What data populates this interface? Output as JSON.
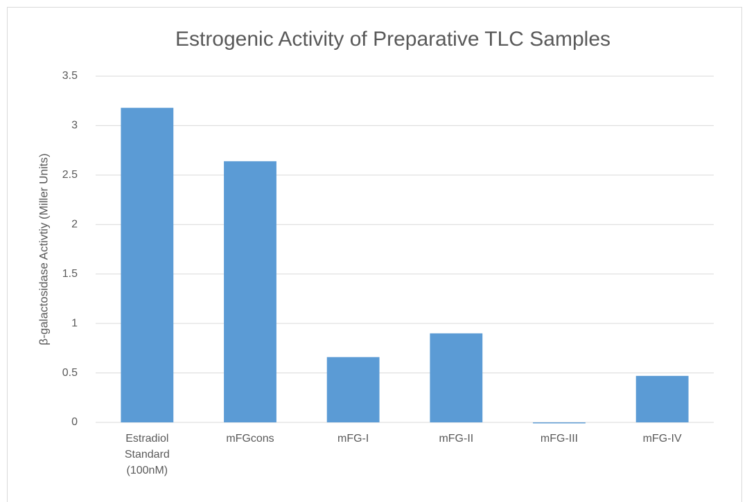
{
  "chart_data": {
    "type": "bar",
    "title": "Estrogenic Activity of Preparative TLC Samples",
    "y_label": "β-galactosidase Activtiy (Miller Units)",
    "categories": [
      "Estradiol Standard (100nM)",
      "mFGcons",
      "mFG-I",
      "mFG-II",
      "mFG-III",
      "mFG-IV"
    ],
    "values": [
      3.18,
      2.64,
      0.66,
      0.9,
      -0.01,
      0.47
    ],
    "color": "#5b9bd5",
    "ylim": [
      0,
      3.5
    ],
    "yticks": [
      0,
      0.5,
      1,
      1.5,
      2,
      2.5,
      3,
      3.5
    ],
    "grid": true
  }
}
